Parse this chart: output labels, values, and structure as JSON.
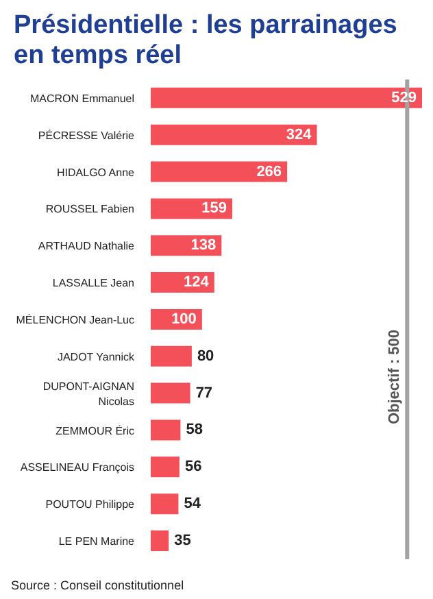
{
  "chart_data": {
    "type": "bar",
    "orientation": "horizontal",
    "title": "Présidentielle : les parrainages en temps réel",
    "categories": [
      "MACRON Emmanuel",
      "PÉCRESSE Valérie",
      "HIDALGO Anne",
      "ROUSSEL Fabien",
      "ARTHAUD Nathalie",
      "LASSALLE Jean",
      "MÉLENCHON Jean-Luc",
      "JADOT Yannick",
      "DUPONT-AIGNAN Nicolas",
      "ZEMMOUR Éric",
      "ASSELINEAU François",
      "POUTOU Philippe",
      "LE PEN Marine"
    ],
    "values": [
      529,
      324,
      266,
      159,
      138,
      124,
      100,
      80,
      77,
      58,
      56,
      54,
      35
    ],
    "color": "#f4505a",
    "data_labels": true,
    "grid": false,
    "legend": false,
    "ref_lines": [
      {
        "axis": "x",
        "value": 500,
        "label": "Objectif : 500",
        "color": "#a3a3a3"
      }
    ],
    "annotations": [
      "Source : Conseil constitutionnel"
    ]
  }
}
